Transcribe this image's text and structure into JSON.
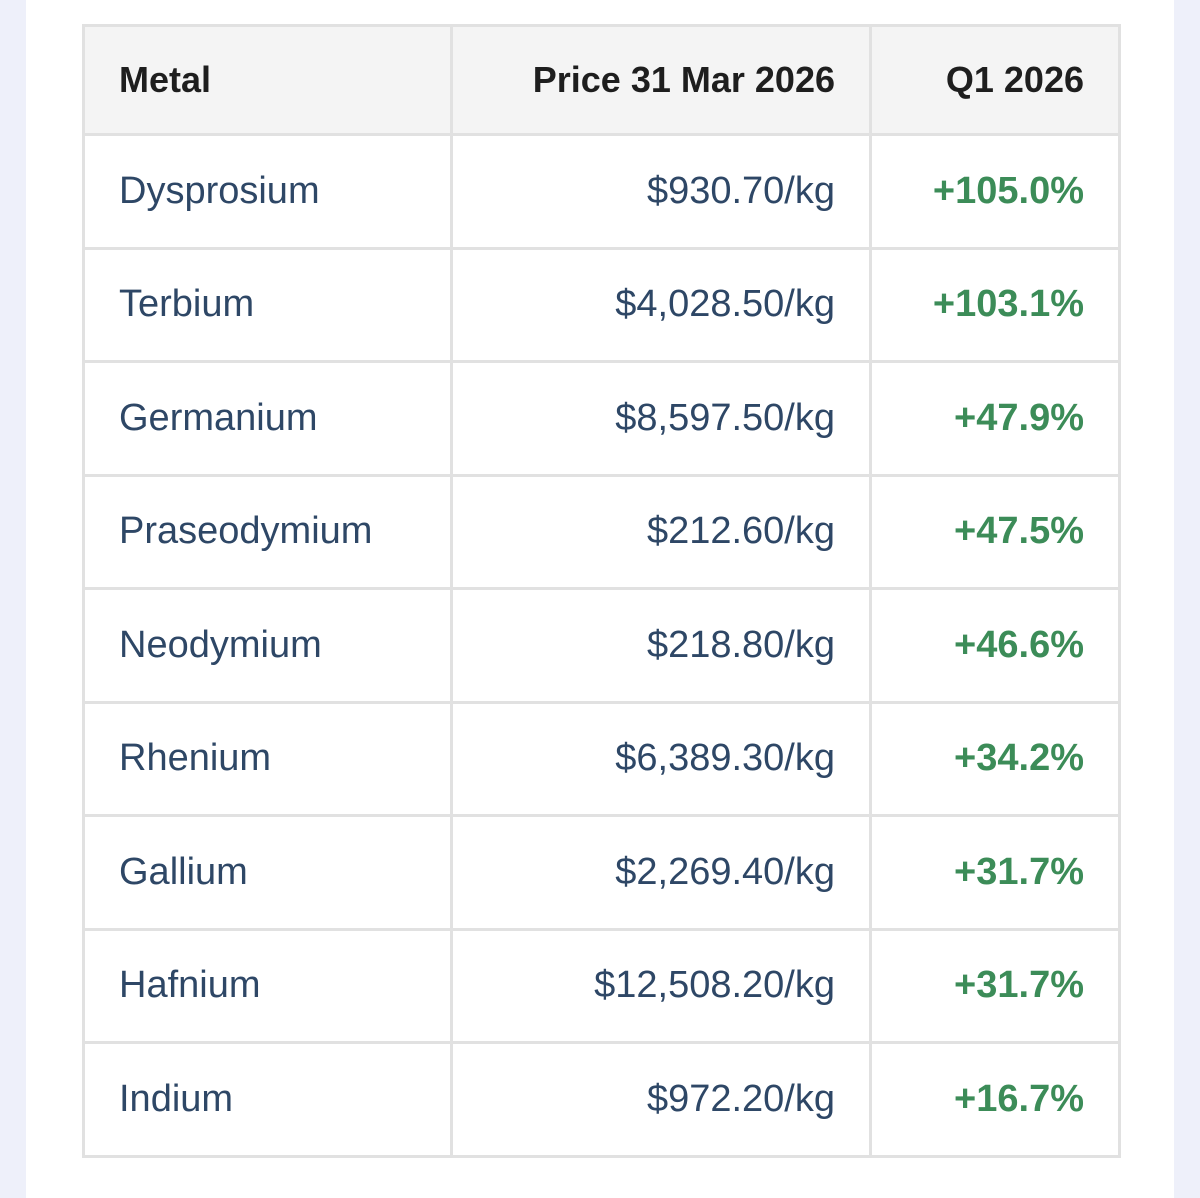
{
  "table": {
    "headers": {
      "metal": "Metal",
      "price": "Price 31 Mar 2026",
      "change": "Q1 2026"
    },
    "rows": [
      {
        "metal": "Dysprosium",
        "price": "$930.70/kg",
        "change": "+105.0%"
      },
      {
        "metal": "Terbium",
        "price": "$4,028.50/kg",
        "change": "+103.1%"
      },
      {
        "metal": "Germanium",
        "price": "$8,597.50/kg",
        "change": "+47.9%"
      },
      {
        "metal": "Praseodymium",
        "price": "$212.60/kg",
        "change": "+47.5%"
      },
      {
        "metal": "Neodymium",
        "price": "$218.80/kg",
        "change": "+46.6%"
      },
      {
        "metal": "Rhenium",
        "price": "$6,389.30/kg",
        "change": "+34.2%"
      },
      {
        "metal": "Gallium",
        "price": "$2,269.40/kg",
        "change": "+31.7%"
      },
      {
        "metal": "Hafnium",
        "price": "$12,508.20/kg",
        "change": "+31.7%"
      },
      {
        "metal": "Indium",
        "price": "$972.20/kg",
        "change": "+16.7%"
      }
    ]
  },
  "colors": {
    "page_background": "#eef0fa",
    "card_background": "#ffffff",
    "header_background": "#f4f4f4",
    "border": "#e1e1e1",
    "header_text": "#1e1e1e",
    "body_text": "#2e4766",
    "positive_change": "#3c8c58"
  }
}
